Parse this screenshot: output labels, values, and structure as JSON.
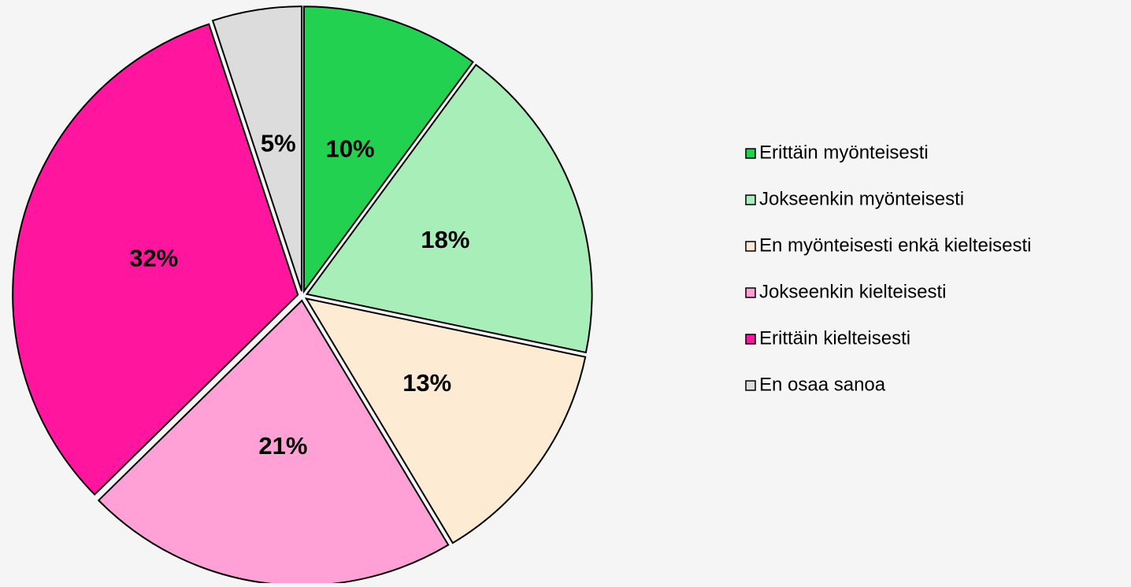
{
  "chart_data": {
    "type": "pie",
    "categories": [
      "Erittäin myönteisesti",
      "Jokseenkin myönteisesti",
      "En myönteisesti enkä kielteisesti",
      "Jokseenkin kielteisesti",
      "Erittäin kielteisesti",
      "En osaa sanoa"
    ],
    "values": [
      10,
      18,
      13,
      21,
      32,
      5
    ],
    "value_labels": [
      "10%",
      "18%",
      "13%",
      "21%",
      "32%",
      "5%"
    ],
    "colors": [
      "#22d150",
      "#a8eeb8",
      "#fdebd3",
      "#ffa0d6",
      "#ff159e",
      "#dcdcdc"
    ],
    "legend": "right"
  }
}
